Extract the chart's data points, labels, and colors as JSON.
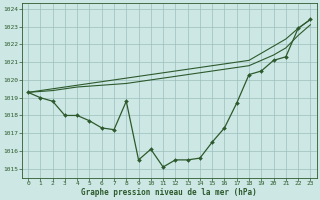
{
  "title": "Graphe pression niveau de la mer (hPa)",
  "x_ticks": [
    0,
    1,
    2,
    3,
    4,
    5,
    6,
    7,
    8,
    9,
    10,
    11,
    12,
    13,
    14,
    15,
    16,
    17,
    18,
    19,
    20,
    21,
    22,
    23
  ],
  "ylim": [
    1014.5,
    1024.3
  ],
  "yticks": [
    1015,
    1016,
    1017,
    1018,
    1019,
    1020,
    1021,
    1022,
    1023,
    1024
  ],
  "y_obs": [
    1019.3,
    1019.0,
    1018.8,
    1018.0,
    1018.0,
    1017.7,
    1017.3,
    1017.2,
    1018.8,
    1015.5,
    1016.1,
    1015.1,
    1015.5,
    1015.5,
    1015.6,
    1016.5,
    1017.3,
    1018.7,
    1020.3,
    1020.5,
    1021.1,
    1021.3,
    1022.9,
    1023.4
  ],
  "y_trend1": [
    1019.3,
    1019.4,
    1019.5,
    1019.6,
    1019.7,
    1019.8,
    1019.9,
    1020.0,
    1020.1,
    1020.2,
    1020.3,
    1020.4,
    1020.5,
    1020.6,
    1020.7,
    1020.8,
    1020.9,
    1021.0,
    1021.1,
    1021.5,
    1021.9,
    1022.3,
    1022.9,
    1023.4
  ],
  "y_trend2": [
    1019.3,
    1019.35,
    1019.4,
    1019.5,
    1019.6,
    1019.65,
    1019.7,
    1019.75,
    1019.8,
    1019.9,
    1020.0,
    1020.1,
    1020.2,
    1020.3,
    1020.4,
    1020.5,
    1020.6,
    1020.7,
    1020.8,
    1021.1,
    1021.4,
    1021.8,
    1022.5,
    1023.1
  ],
  "bg_color": "#cde8e4",
  "grid_color": "#9bbfbb",
  "text_color": "#2d5a2d",
  "line_color": "#2d5a2d"
}
